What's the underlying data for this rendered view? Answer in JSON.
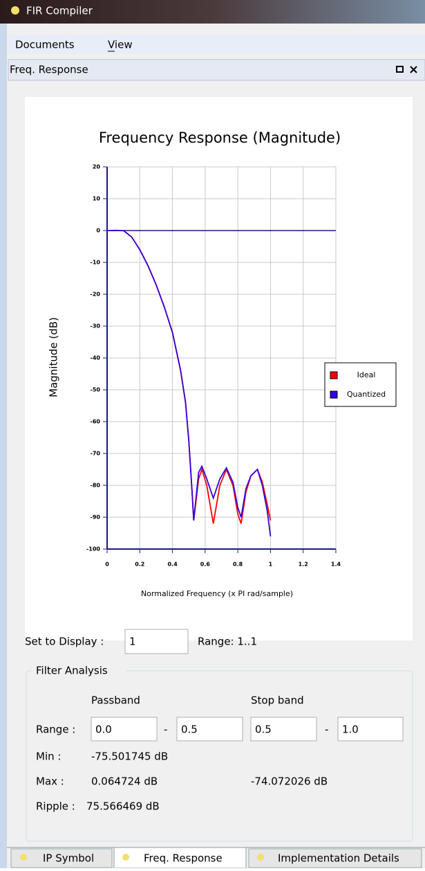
{
  "window": {
    "title": "FIR Compiler",
    "menu": [
      "Documents",
      "View"
    ]
  },
  "panel": {
    "title": "Freq. Response"
  },
  "chart_data": {
    "type": "line",
    "title": "Frequency Response (Magnitude)",
    "x_label": "Normalized Frequency (x PI rad/sample)",
    "y_label": "Magnitude (dB)",
    "x": [
      0,
      0.05,
      0.1,
      0.15,
      0.2,
      0.25,
      0.3,
      0.35,
      0.4,
      0.45,
      0.48,
      0.5,
      0.52,
      0.53,
      0.56,
      0.58,
      0.61,
      0.65,
      0.69,
      0.73,
      0.77,
      0.8,
      0.82,
      0.85,
      0.88,
      0.92,
      0.95,
      0.98,
      1.0
    ],
    "series": [
      {
        "name": "Ideal",
        "color": "#ff0000",
        "values": [
          0,
          0.06,
          0,
          -2,
          -6,
          -11,
          -17,
          -24,
          -32,
          -44,
          -54,
          -66,
          -82,
          -91,
          -78,
          -75,
          -80,
          -92,
          -80,
          -75,
          -80,
          -89,
          -92,
          -82,
          -77,
          -75,
          -79,
          -86,
          -91
        ]
      },
      {
        "name": "Quantized",
        "color": "#3300dd",
        "values": [
          0,
          0.06,
          0,
          -2,
          -6,
          -11,
          -17,
          -24,
          -32,
          -44,
          -54,
          -66,
          -82,
          -91,
          -76,
          -74,
          -78,
          -84,
          -78,
          -74.5,
          -79,
          -87,
          -90,
          -81,
          -77,
          -75,
          -80,
          -88,
          -96
        ]
      }
    ],
    "xlim": [
      0,
      1.4
    ],
    "xticks": [
      0,
      0.2,
      0.4,
      0.6,
      0.8,
      1,
      1.2,
      1.4
    ],
    "ylim": [
      -100,
      20
    ],
    "yticks": [
      20,
      10,
      0,
      -10,
      -20,
      -30,
      -40,
      -50,
      -60,
      -70,
      -80,
      -90,
      -100
    ],
    "grid": true,
    "legend": "right",
    "zero_line_color": "#1a1a80"
  },
  "display": {
    "label": "Set to Display :",
    "value": "1",
    "range": "Range: 1..1"
  },
  "analysis": {
    "title": "Filter Analysis",
    "passband": "Passband",
    "stopband": "Stop band",
    "range_label": "Range :",
    "range_values": [
      "0.0",
      "0.5",
      "0.5",
      "1.0"
    ],
    "separator": "-",
    "min_label": "Min :",
    "min": "-75.501745 dB",
    "max_label": "Max :",
    "max_passband": "0.064724 dB",
    "max_stopband": "-74.072026 dB",
    "ripple_label": "Ripple :",
    "ripple": "75.566469 dB"
  },
  "tabs": [
    "IP Symbol",
    "Freq. Response",
    "Implementation Details"
  ]
}
